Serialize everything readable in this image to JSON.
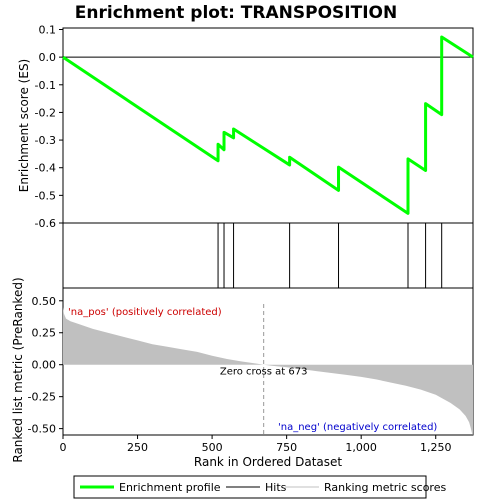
{
  "chart_data": {
    "type": "line",
    "title": "Enrichment plot: TRANSPOSITION",
    "x_axis": {
      "label": "Rank in Ordered Dataset",
      "range": [
        0,
        1375
      ],
      "ticks": [
        0,
        250,
        500,
        750,
        1000,
        1250
      ],
      "tick_labels": [
        "0",
        "250",
        "500",
        "750",
        "1,000",
        "1,250"
      ]
    },
    "es_panel": {
      "ylabel": "Enrichment score (ES)",
      "ylim": [
        -0.6,
        0.1
      ],
      "ticks": [
        0.1,
        0.0,
        -0.1,
        -0.2,
        -0.3,
        -0.4,
        -0.5,
        -0.6
      ],
      "tick_labels": [
        "0.1",
        "0.0",
        "-0.1",
        "-0.2",
        "-0.3",
        "-0.4",
        "-0.5",
        "-0.6"
      ],
      "zero_line": true,
      "series": [
        {
          "name": "Enrichment profile",
          "color": "#00ff00",
          "x": [
            0,
            520,
            520,
            540,
            540,
            572,
            572,
            760,
            760,
            924,
            924,
            1157,
            1157,
            1216,
            1216,
            1270,
            1270,
            1375
          ],
          "y": [
            0.0,
            -0.375,
            -0.315,
            -0.335,
            -0.272,
            -0.292,
            -0.26,
            -0.39,
            -0.362,
            -0.482,
            -0.398,
            -0.565,
            -0.368,
            -0.41,
            -0.168,
            -0.208,
            0.073,
            0.0
          ]
        }
      ]
    },
    "hits": {
      "name": "Hits",
      "color": "#000000",
      "positions": [
        520,
        540,
        572,
        760,
        924,
        1157,
        1216,
        1270
      ]
    },
    "color_bar": {
      "segments": [
        {
          "start": 0,
          "end": 20,
          "color": "#e8001a"
        },
        {
          "start": 20,
          "end": 125,
          "color": "#f0283e"
        },
        {
          "start": 125,
          "end": 295,
          "color": "#f55466"
        },
        {
          "start": 295,
          "end": 410,
          "color": "#f87a88"
        },
        {
          "start": 410,
          "end": 525,
          "color": "#fb9ca6"
        },
        {
          "start": 525,
          "end": 670,
          "color": "#fdc3dd"
        },
        {
          "start": 670,
          "end": 810,
          "color": "#e0d8f3"
        },
        {
          "start": 810,
          "end": 945,
          "color": "#c5bff5"
        },
        {
          "start": 945,
          "end": 1060,
          "color": "#8f88f3"
        },
        {
          "start": 1060,
          "end": 1170,
          "color": "#6a5ee8"
        },
        {
          "start": 1170,
          "end": 1265,
          "color": "#4a36dc"
        },
        {
          "start": 1265,
          "end": 1375,
          "color": "#3300c6"
        }
      ]
    },
    "metric_panel": {
      "ylabel": "Ranked list metric (PreRanked)",
      "ylim": [
        -0.55,
        0.6
      ],
      "ticks": [
        0.5,
        0.25,
        0.0,
        -0.25,
        -0.5
      ],
      "tick_labels": [
        "0.50",
        "0.25",
        "0.00",
        "-0.25",
        "-0.50"
      ],
      "series": {
        "name": "Ranking metric scores",
        "color": "#c0c0c0",
        "x": [
          0,
          3,
          10,
          25,
          50,
          100,
          150,
          200,
          250,
          300,
          350,
          400,
          450,
          500,
          550,
          600,
          650,
          673,
          700,
          750,
          800,
          850,
          900,
          950,
          1000,
          1050,
          1100,
          1150,
          1200,
          1250,
          1300,
          1330,
          1350,
          1362,
          1368,
          1372,
          1375
        ],
        "y": [
          0.45,
          0.4,
          0.36,
          0.34,
          0.32,
          0.28,
          0.25,
          0.22,
          0.19,
          0.16,
          0.14,
          0.12,
          0.1,
          0.07,
          0.045,
          0.025,
          0.008,
          0.0,
          -0.008,
          -0.02,
          -0.035,
          -0.05,
          -0.065,
          -0.08,
          -0.095,
          -0.115,
          -0.14,
          -0.165,
          -0.195,
          -0.235,
          -0.3,
          -0.35,
          -0.4,
          -0.45,
          -0.5,
          -0.54,
          -0.55
        ]
      },
      "zero_cross": {
        "x": 673,
        "label": "Zero cross at 673"
      },
      "annotations": {
        "positive": "'na_pos' (positively correlated)",
        "negative": "'na_neg' (negatively correlated)"
      }
    },
    "legend": {
      "placement": "bottom",
      "entries": [
        {
          "label": "Enrichment profile",
          "color": "#00ff00"
        },
        {
          "label": "Hits",
          "color": "#000000"
        },
        {
          "label": "Ranking metric scores",
          "color": "#c0c0c0"
        }
      ]
    }
  }
}
